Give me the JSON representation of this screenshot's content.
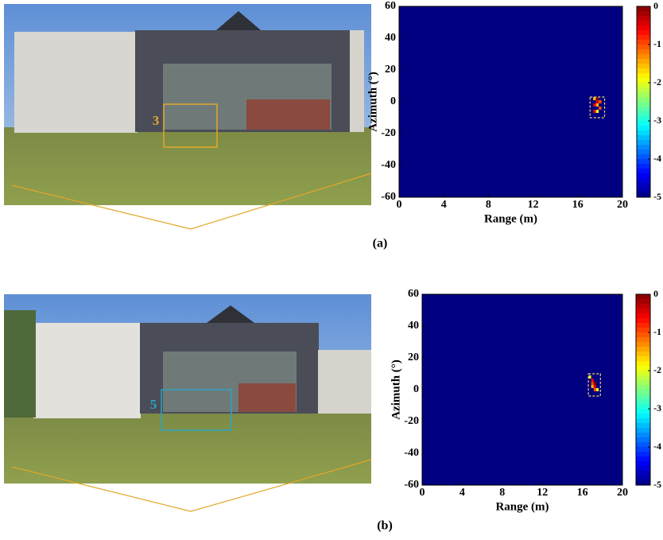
{
  "panels": [
    {
      "label": "(a)",
      "people_count": 3
    },
    {
      "label": "(b)",
      "people_count": 5
    }
  ],
  "chart_data": [
    {
      "type": "heatmap",
      "xlabel": "Range (m)",
      "ylabel": "Azimuth (°)",
      "xlim": [
        0,
        20
      ],
      "xticks": [
        0,
        4,
        8,
        12,
        16,
        20
      ],
      "ylim": [
        -60,
        60
      ],
      "yticks": [
        -60,
        -40,
        -20,
        0,
        20,
        40,
        60
      ],
      "clim": [
        -5,
        0
      ],
      "cticks": [
        0,
        -1,
        -2,
        -3,
        -4,
        -5
      ],
      "background": -5,
      "points": {
        "x": [
          17.5,
          17.75,
          17.75,
          18.0,
          17.5,
          17.75,
          18.0,
          17.5,
          17.75
        ],
        "y": [
          2,
          2,
          0,
          0,
          -2,
          -2,
          -4,
          -6,
          -6
        ],
        "values": [
          -1.5,
          0,
          -0.5,
          -1,
          -0.5,
          -1.5,
          -1,
          -0.5,
          -2
        ]
      },
      "box_x": [
        17.1,
        18.4
      ],
      "box_y": [
        -10,
        3
      ]
    },
    {
      "type": "heatmap",
      "xlabel": "Range (m)",
      "ylabel": "Azimuth (°)",
      "xlim": [
        0,
        20
      ],
      "xticks": [
        0,
        4,
        8,
        12,
        16,
        20
      ],
      "ylim": [
        -60,
        60
      ],
      "yticks": [
        -60,
        -40,
        -20,
        0,
        20,
        40,
        60
      ],
      "clim": [
        -5,
        0
      ],
      "cticks": [
        0,
        -1,
        -2,
        -3,
        -4,
        -5
      ],
      "background": -5,
      "points": {
        "x": [
          16.75,
          17.0,
          17.0,
          17.25,
          17.0,
          17.25,
          17.25,
          17.5
        ],
        "y": [
          8,
          6,
          4,
          4,
          2,
          2,
          0,
          0
        ],
        "values": [
          -2,
          -0.5,
          -1,
          0,
          -1.5,
          -0.5,
          -1,
          -2
        ]
      },
      "box_x": [
        16.6,
        17.8
      ],
      "box_y": [
        -4,
        10
      ]
    }
  ]
}
